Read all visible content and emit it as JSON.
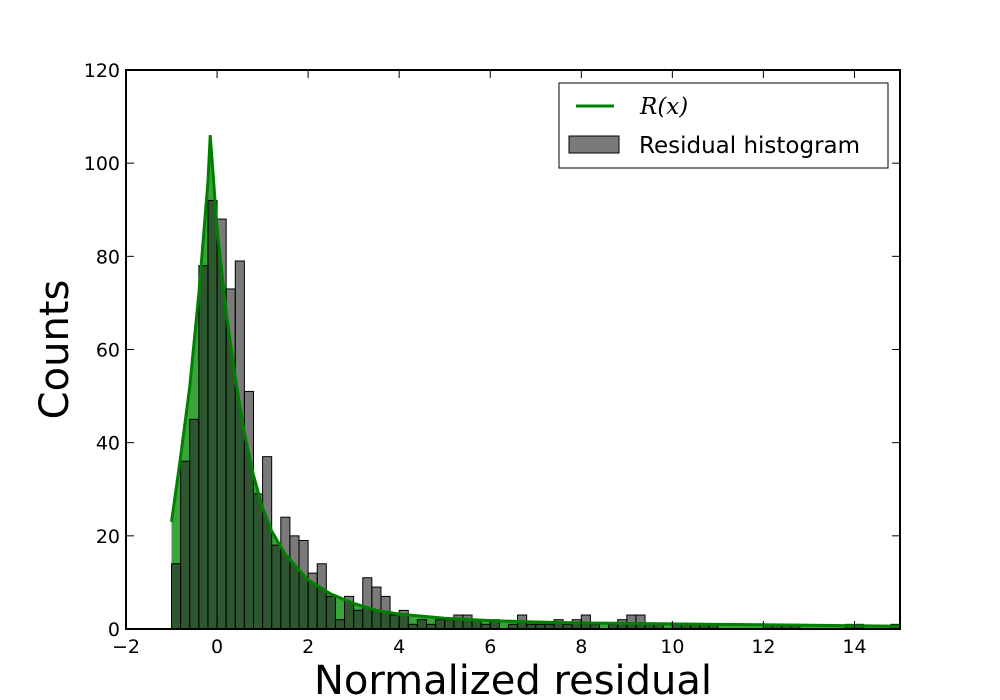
{
  "chart_data": {
    "type": "bar",
    "title": "",
    "xlabel": "Normalized residual",
    "ylabel": "Counts",
    "xlim": [
      -2,
      15
    ],
    "ylim": [
      0,
      120
    ],
    "xticks": [
      -2,
      0,
      2,
      4,
      6,
      8,
      10,
      12,
      14
    ],
    "yticks": [
      0,
      20,
      40,
      60,
      80,
      100,
      120
    ],
    "grid": false,
    "legend_position": "top-right",
    "colors": {
      "histogram": "#7a7a7a",
      "curve": "#008000",
      "curve_fill": "#3aa33a"
    },
    "histogram": {
      "name": "Residual histogram",
      "bin_width": 0.2,
      "bin_left_edges": [
        -1.0,
        -0.8,
        -0.6,
        -0.4,
        -0.2,
        0.0,
        0.2,
        0.4,
        0.6,
        0.8,
        1.0,
        1.2,
        1.4,
        1.6,
        1.8,
        2.0,
        2.2,
        2.4,
        2.6,
        2.8,
        3.0,
        3.2,
        3.4,
        3.6,
        3.8,
        4.0,
        4.2,
        4.4,
        4.6,
        4.8,
        5.0,
        5.2,
        5.4,
        5.6,
        5.8,
        6.0,
        6.2,
        6.4,
        6.6,
        6.8,
        7.0,
        7.2,
        7.4,
        7.6,
        7.8,
        8.0,
        8.2,
        8.4,
        8.6,
        8.8,
        9.0,
        9.2,
        9.4,
        9.6,
        9.8,
        10.0,
        10.2,
        10.4,
        10.6,
        10.8,
        11.0,
        11.2,
        11.4,
        11.6,
        11.8,
        12.0,
        12.2,
        12.4,
        12.6,
        12.8,
        13.0,
        13.2,
        13.4,
        13.6,
        13.8,
        14.0,
        14.2,
        14.4,
        14.6,
        14.8
      ],
      "counts": [
        14,
        36,
        45,
        78,
        92,
        88,
        73,
        79,
        51,
        29,
        37,
        18,
        24,
        20,
        19,
        12,
        14,
        7,
        2,
        7,
        4,
        11,
        9,
        7,
        3,
        4,
        1,
        2,
        1,
        2,
        2,
        3,
        3,
        2,
        1,
        2,
        0,
        1,
        3,
        1,
        1,
        1,
        2,
        1,
        2,
        3,
        1,
        0,
        1,
        2,
        3,
        3,
        1,
        1,
        0,
        1,
        1,
        1,
        1,
        1,
        0,
        0,
        0,
        0,
        0,
        1,
        1,
        1,
        1,
        0,
        0,
        0,
        0,
        0,
        1,
        1,
        0,
        0,
        0,
        1
      ]
    },
    "curve": {
      "name": "R(x)",
      "x": [
        -1.0,
        -0.8,
        -0.6,
        -0.4,
        -0.2,
        -0.15,
        0.0,
        0.2,
        0.4,
        0.6,
        0.8,
        1.0,
        1.2,
        1.5,
        2.0,
        2.5,
        3.0,
        3.5,
        4.0,
        5.0,
        6.0,
        7.0,
        8.0,
        9.0,
        10.0,
        11.0,
        12.0,
        13.0,
        14.0,
        15.0
      ],
      "y": [
        23,
        37,
        52,
        72,
        96,
        106,
        86,
        68,
        54,
        42,
        33,
        26,
        21,
        16,
        10.5,
        7.5,
        5.5,
        4.0,
        3.2,
        2.3,
        1.8,
        1.5,
        1.3,
        1.2,
        1.1,
        1.0,
        0.9,
        0.8,
        0.7,
        0.6
      ]
    }
  }
}
